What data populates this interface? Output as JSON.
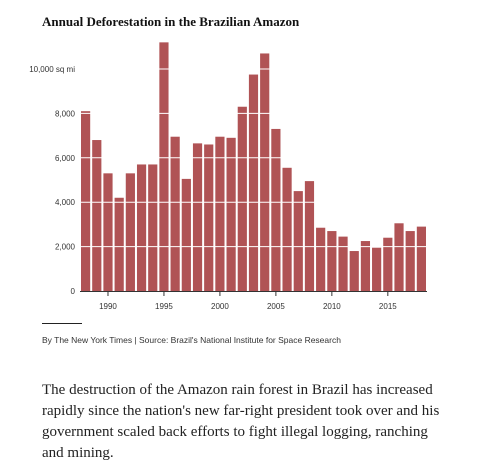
{
  "title": "Annual Deforestation in the Brazilian Amazon",
  "credit": "By The New York Times | Source: Brazil's National Institute for Space Research",
  "paragraph": "The destruction of the Amazon rain forest in Brazil has increased rapidly since the nation's new far-right president took over and his government scaled back efforts to fight illegal logging, ranching and mining.",
  "colors": {
    "bar": "#b05355",
    "gridline": "#ffffff",
    "axis": "#333333"
  },
  "chart_data": {
    "type": "bar",
    "title": "Annual Deforestation in the Brazilian Amazon",
    "xlabel": "",
    "ylabel": "",
    "categories": [
      1988,
      1989,
      1990,
      1991,
      1992,
      1993,
      1994,
      1995,
      1996,
      1997,
      1998,
      1999,
      2000,
      2001,
      2002,
      2003,
      2004,
      2005,
      2006,
      2007,
      2008,
      2009,
      2010,
      2011,
      2012,
      2013,
      2014,
      2015,
      2016,
      2017,
      2018
    ],
    "values": [
      8100,
      6800,
      5300,
      4200,
      5300,
      5700,
      5700,
      11200,
      6950,
      5050,
      6650,
      6600,
      6950,
      6900,
      8300,
      9750,
      10700,
      7300,
      5550,
      4500,
      4950,
      2850,
      2700,
      2450,
      1800,
      2250,
      1950,
      2400,
      3050,
      2700,
      2900
    ],
    "ylim": [
      0,
      11500
    ],
    "y_ticks": [
      0,
      2000,
      4000,
      6000,
      8000,
      10000
    ],
    "y_tick_labels": [
      "0",
      "2,000",
      "4,000",
      "6,000",
      "8,000",
      "10,000 sq mi"
    ],
    "x_ticks": [
      1990,
      1995,
      2000,
      2005,
      2010,
      2015
    ],
    "x_tick_labels": [
      "1990",
      "1995",
      "2000",
      "2005",
      "2010",
      "2015"
    ],
    "grid": true
  }
}
